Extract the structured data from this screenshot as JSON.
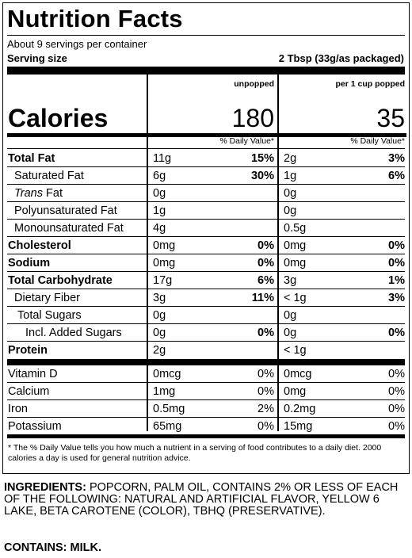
{
  "panel": {
    "title": "Nutrition Facts",
    "servings_per_container": "About 9 servings per container",
    "serving_size_label": "Serving size",
    "serving_size_value": "2 Tbsp (33g/as packaged)",
    "col1_header": "unpopped",
    "col2_header": "per 1 cup popped",
    "calories_label": "Calories",
    "calories_col1": "180",
    "calories_col2": "35",
    "dv_header": "% Daily Value*",
    "nutrients": [
      {
        "name": "Total Fat",
        "bold": true,
        "indent": 0,
        "amt1": "11g",
        "pct1": "15%",
        "amt2": "2g",
        "pct2": "3%"
      },
      {
        "name": "Saturated Fat",
        "bold": false,
        "indent": 1,
        "amt1": "6g",
        "pct1": "30%",
        "amt2": "1g",
        "pct2": "6%"
      },
      {
        "name_italic": "Trans",
        "name": " Fat",
        "bold": false,
        "indent": 1,
        "amt1": "0g",
        "pct1": "",
        "amt2": "0g",
        "pct2": ""
      },
      {
        "name": "Polyunsaturated Fat",
        "bold": false,
        "indent": 1,
        "amt1": "1g",
        "pct1": "",
        "amt2": "0g",
        "pct2": ""
      },
      {
        "name": "Monounsaturated Fat",
        "bold": false,
        "indent": 1,
        "amt1": "4g",
        "pct1": "",
        "amt2": "0.5g",
        "pct2": ""
      },
      {
        "name": "Cholesterol",
        "bold": true,
        "indent": 0,
        "amt1": "0mg",
        "pct1": "0%",
        "amt2": "0mg",
        "pct2": "0%"
      },
      {
        "name": "Sodium",
        "bold": true,
        "indent": 0,
        "amt1": "0mg",
        "pct1": "0%",
        "amt2": "0mg",
        "pct2": "0%"
      },
      {
        "name": "Total Carbohydrate",
        "bold": true,
        "indent": 0,
        "amt1": "17g",
        "pct1": "6%",
        "amt2": "3g",
        "pct2": "1%"
      },
      {
        "name": "Dietary Fiber",
        "bold": false,
        "indent": 1,
        "amt1": "3g",
        "pct1": "11%",
        "amt2": "< 1g",
        "pct2": "3%"
      },
      {
        "name": "Total Sugars",
        "bold": false,
        "indent": 2,
        "amt1": "0g",
        "pct1": "",
        "amt2": "0g",
        "pct2": ""
      },
      {
        "name": "Incl. Added Sugars",
        "bold": false,
        "indent": 3,
        "amt1": "0g",
        "pct1": "0%",
        "amt2": "0g",
        "pct2": "0%"
      },
      {
        "name": "Protein",
        "bold": true,
        "indent": 0,
        "amt1": "2g",
        "pct1": "",
        "amt2": "< 1g",
        "pct2": ""
      }
    ],
    "vitamins": [
      {
        "name": "Vitamin D",
        "amt1": "0mcg",
        "pct1": "0%",
        "amt2": "0mcg",
        "pct2": "0%"
      },
      {
        "name": "Calcium",
        "amt1": "1mg",
        "pct1": "0%",
        "amt2": "0mg",
        "pct2": "0%"
      },
      {
        "name": "Iron",
        "amt1": "0.5mg",
        "pct1": "2%",
        "amt2": "0.2mg",
        "pct2": "0%"
      },
      {
        "name": "Potassium",
        "amt1": "65mg",
        "pct1": "0%",
        "amt2": "15mg",
        "pct2": "0%"
      }
    ],
    "footnote": "* The % Daily Value tells you how much a nutrient in a serving of food contributes to a daily diet. 2000 calories a day is used for general nutrition advice."
  },
  "ingredients_label": "INGREDIENTS:",
  "ingredients_text": " POPCORN, PALM OIL, CONTAINS 2% OR LESS OF EACH OF THE FOLLOWING: NATURAL AND ARTIFICIAL FLAVOR, YELLOW 6 LAKE, BETA CAROTENE (COLOR), TBHQ (PRESERVATIVE).",
  "contains_text": "CONTAINS: MILK."
}
